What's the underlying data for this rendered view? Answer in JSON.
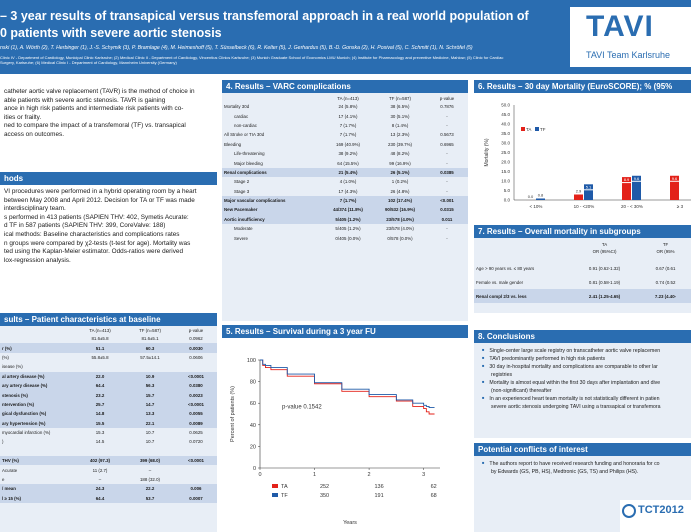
{
  "header": {
    "title_line1": "– 3 year results of transapical versus transfemoral approach in a real world population of",
    "title_line2": "0 patients with severe aortic stenosis",
    "authors": "nski (1), A. Wörth (2), T. Herbinger (1), J.-S. Schymik (3), P. Bramlage (4), M. Heimeshoff (5), T. Süsselbeck (6), R. Kelter (5), J. Gerhardus (5), B.-D. Gonska (2), H. Posival (5), C. Schmitt (1), N. Schröfel (5)",
    "affil_line1": "Clinic IV - Department of Cardiology, Municipal Clinic Karlsruhe; (2) Medical Clinic II - Department of Cardiology, Vincentius Clinics Karlsruhe; (3) Munich Graduate School of Economics LMU Munich; (4) Institute for Pharmacology and preventive Medicine, Mahlow; (5) Clinic for Cardiac",
    "affil_line2": "Surgery, Karlsruhe; (6) Medical Clinic I - Department of Cardiology, Mannheim University (Germany)",
    "logo_text": "TAVI",
    "logo_sub": "TAVI Team Karlsruhe"
  },
  "intro": {
    "lines": [
      "catheter aortic valve replacement (TAVR) is the method of choice in",
      "able patients with severe aortic stenosis. TAVR is gaining",
      "ance in high risk patients and intermediate risk patients with co-",
      "ities or frailty.",
      "ned to compare the impact of a transfemoral (TF) vs. transapical",
      "access on outcomes."
    ]
  },
  "methods": {
    "title": "hods",
    "lines": [
      "VI procedures were performed in a hybrid operating room by a heart",
      "between May 2008 and April 2012. Decision for TA or TF was made",
      "interdisciplinary team.",
      "s performed in 413 patients (SAPIEN THV: 402, Symetis Acurate:",
      "d TF in 587 patients (SAPIEN THV: 399, CoreValve: 188)",
      "ical methods: Baseline characteristics and complications rates",
      "n groups were compared by χ2-tests (t-test for age). Mortality was",
      "ted using the Kaplan-Meier estimator. Odds-ratios were derived",
      "lox-regression analysis."
    ]
  },
  "baseline": {
    "title": "sults – Patient characteristics at baseline",
    "headers": [
      "",
      "TA (n=413)",
      "TF (n=587)",
      "p-value"
    ],
    "rows": [
      {
        "label": "",
        "ta": "81.6±5.8",
        "tf": "81.6±5.1",
        "p": "0.0962",
        "hl": false
      },
      {
        "label": "r (%)",
        "ta": "51.1",
        "tf": "60.3",
        "p": "0.0030",
        "hl": true
      },
      {
        "label": "(%)",
        "ta": "55.8±5.8",
        "tf": "57.5±14.1",
        "p": "0.0606",
        "hl": false
      },
      {
        "label": "isease (%)",
        "ta": "",
        "tf": "",
        "p": "",
        "hl": false
      },
      {
        "label": "al artery disease (%)",
        "ta": "22.0",
        "tf": "10.9",
        "p": "<0.0001",
        "hl": true
      },
      {
        "label": "ary artery disease (%)",
        "ta": "64.4",
        "tf": "56.3",
        "p": "0.0380",
        "hl": true
      },
      {
        "label": "stenosis (%)",
        "ta": "23.2",
        "tf": "15.7",
        "p": "0.0023",
        "hl": true
      },
      {
        "label": "ntervention (%)",
        "ta": "25.7",
        "tf": "14.7",
        "p": "<0.0001",
        "hl": true
      },
      {
        "label": "gical dysfunction (%)",
        "ta": "14.8",
        "tf": "13.3",
        "p": "0.0055",
        "hl": true
      },
      {
        "label": "ary hypertension (%)",
        "ta": "15.5",
        "tf": "22.1",
        "p": "0.0089",
        "hl": true
      },
      {
        "label": "myocardial infarction (%)",
        "ta": "15.3",
        "tf": "10.7",
        "p": "0.0625",
        "hl": false
      },
      {
        "label": ")",
        "ta": "14.5",
        "tf": "10.7",
        "p": "0.0720",
        "hl": false
      },
      {
        "label": "",
        "ta": "",
        "tf": "",
        "p": "",
        "hl": false
      },
      {
        "label": "THV (%)",
        "ta": "402 (97.3)",
        "tf": "399 (68.0)",
        "p": "<0.0001",
        "hl": true
      },
      {
        "label": "Acurate",
        "ta": "11 (2.7)",
        "tf": "–",
        "p": "",
        "hl": false
      },
      {
        "label": "e",
        "ta": "–",
        "tf": "188 (32.0)",
        "p": "",
        "hl": false
      },
      {
        "label": "/ mean",
        "ta": "24.3",
        "tf": "22.2",
        "p": "0.006",
        "hl": true
      },
      {
        "label": "l ≥ 15 (%)",
        "ta": "64.4",
        "tf": "53.7",
        "p": "0.0007",
        "hl": true
      }
    ]
  },
  "varc": {
    "title": "4. Results – VARC complications",
    "headers": [
      "",
      "TA (n=413)",
      "TF (n=587)",
      "p-value"
    ],
    "rows": [
      {
        "label": "Mortality 30d",
        "ta": "24 (5.8%)",
        "tf": "38 (6.5%)",
        "p": "0.7876",
        "hl": false,
        "indent": false
      },
      {
        "label": "cardiac",
        "ta": "17 (4.1%)",
        "tf": "30 (5.1%)",
        "p": "-",
        "hl": false,
        "indent": true
      },
      {
        "label": "non-cardiac",
        "ta": "7 (1.7%)",
        "tf": "8 (1.4%)",
        "p": "-",
        "hl": false,
        "indent": true
      },
      {
        "label": "All Stroke or TIA 30d",
        "ta": "7 (1.7%)",
        "tf": "13 (2.3%)",
        "p": "0.5673",
        "hl": false,
        "indent": false
      },
      {
        "label": "Bleeding",
        "ta": "169 (40.9%)",
        "tf": "230 (39.7%)",
        "p": "0.6965",
        "hl": false,
        "indent": false
      },
      {
        "label": "Life-threatening",
        "ta": "38 (9.2%)",
        "tf": "48 (8.2%)",
        "p": "-",
        "hl": false,
        "indent": true
      },
      {
        "label": "Major bleeding",
        "ta": "64 (15.5%)",
        "tf": "99 (16.9%)",
        "p": "-",
        "hl": false,
        "indent": true
      },
      {
        "label": "Renal complications",
        "ta": "21 (5.4%)",
        "tf": "26 (5.1%)",
        "p": "0.0385",
        "hl": true,
        "indent": false
      },
      {
        "label": "Stage 2",
        "ta": "4 (1.0%)",
        "tf": "1 (0.2%)",
        "p": "-",
        "hl": false,
        "indent": true
      },
      {
        "label": "Stage 3",
        "ta": "17 (4.3%)",
        "tf": "26 (4.8%)",
        "p": "-",
        "hl": false,
        "indent": true
      },
      {
        "label": "Major vascular complications",
        "ta": "7 (1.7%)",
        "tf": "102 (17.4%)",
        "p": "<0.001",
        "hl": true,
        "indent": false
      },
      {
        "label": "New Pacemaker",
        "ta": "44/374 (11.8%)",
        "tf": "90/532 (16.9%)",
        "p": "0.0315",
        "hl": true,
        "indent": false
      },
      {
        "label": "Aortic insufficiency",
        "ta": "5/405 (1.2%)",
        "tf": "23/578 (4.0%)",
        "p": "0.011",
        "hl": true,
        "indent": false
      },
      {
        "label": "Moderate",
        "ta": "5/405 (1.2%)",
        "tf": "23/578 (4.0%)",
        "p": "-",
        "hl": false,
        "indent": true
      },
      {
        "label": "Severe",
        "ta": "0/405 (0.0%)",
        "tf": "0/578 (0.0%)",
        "p": "-",
        "hl": false,
        "indent": true
      }
    ]
  },
  "survival": {
    "title": "5. Results – Survival during a 3 year FU"
  },
  "mortality": {
    "title": "6. Results – 30 day Mortality (EuroSCORE); % (95%"
  },
  "subgroups": {
    "title": "7. Results – Overall mortality in subgroups",
    "col_ta": "TA",
    "col_tf": "TF",
    "col_or": "OR (95%CI)",
    "col_or2": "OR (95%",
    "rows": [
      {
        "label": "Age > 90 years vs. ≤ 80 years",
        "ta": "0.91 (0.62-1.32)",
        "tf": "0.67 (0.61",
        "hl": false
      },
      {
        "label": "Female vs. male gender",
        "ta": "0.81 (0.58-1.19)",
        "tf": "0.74 (0.52",
        "hl": false
      },
      {
        "label": "Renal compl 2/3 vs. less",
        "ta": "2.41 (1.25-4.65)",
        "tf": "7.23 (4.40-",
        "hl": true
      }
    ]
  },
  "conclusions": {
    "title": "8. Conclusions",
    "items": [
      "Single-center large scale registry on transcatheter aortic valve replacemen",
      "TAVI predominantly performed in high risk patients",
      "30 day in-hospital mortality and complications are comparable to other lar",
      "registries",
      "Mortality is almost equal within the first 30 days after implantation and dive",
      "(non-significant) thereafter",
      "In an experienced heart team mortality is not statistically different in patien",
      "severe aortic stenosis undergoing TAVI using a transapical or transfemora"
    ],
    "bullets": [
      true,
      true,
      true,
      false,
      true,
      false,
      true,
      false
    ]
  },
  "conflicts": {
    "title": "Potential conflicts of interest",
    "items": [
      "The authors report to have received research funding and honoraria for co",
      "by Edwards (GS, PB, HS), Medtronic (GS, TS) and Philips (HS)."
    ],
    "bullets": [
      true,
      false
    ]
  },
  "tct_logo": "TCT2012",
  "colors": {
    "header_blue": "#2a6db1",
    "panel_bg": "#e8eef6",
    "highlight_row": "#c9d6ea",
    "ta_red": "#e32119",
    "tf_blue": "#1f5aa8"
  },
  "chart_data": [
    {
      "type": "line",
      "ylabel": "Percent of patients (%)",
      "xlabel": "Years",
      "yticks": [
        "0",
        "20",
        "40",
        "60",
        "80",
        "100"
      ],
      "xticks": [
        "0",
        "1",
        "2",
        "3"
      ],
      "ylim": [
        0,
        100
      ],
      "xlim": [
        0,
        3.3
      ],
      "grid": false,
      "annotation": "p-value 0.1542",
      "series": [
        {
          "name": "TA",
          "color": "#e32119",
          "x": [
            0,
            0.05,
            0.1,
            0.2,
            0.5,
            1.0,
            1.5,
            2.0,
            2.5,
            2.8,
            3.0,
            3.05,
            3.1,
            3.2
          ],
          "y": [
            100,
            95,
            93,
            91,
            85,
            78,
            71,
            66,
            62,
            57,
            55,
            52,
            50,
            50
          ]
        },
        {
          "name": "TF",
          "color": "#1f5aa8",
          "x": [
            0,
            0.05,
            0.1,
            0.2,
            0.5,
            1.0,
            1.5,
            2.0,
            2.5,
            2.8,
            3.0,
            3.05,
            3.1,
            3.2
          ],
          "y": [
            100,
            96,
            95,
            93,
            87,
            79,
            73,
            68,
            63,
            60,
            58,
            57,
            56,
            56
          ]
        }
      ],
      "at_risk": {
        "TA": [
          "413",
          "252",
          "136",
          "62"
        ],
        "TF": [
          "587",
          "350",
          "191",
          "68"
        ]
      }
    },
    {
      "type": "bar",
      "ylabel": "Mortality (%)",
      "ylim": [
        0,
        50
      ],
      "yticks": [
        "0.0",
        "5.0",
        "10.0",
        "15.0",
        "20.0",
        "25.0",
        "30.0",
        "35.0",
        "40.0",
        "45.0",
        "50.0"
      ],
      "categories": [
        "< 10%",
        "10 - <20%",
        "20 - < 30%",
        "≥ 3"
      ],
      "series": [
        {
          "name": "TA",
          "color": "#e32119",
          "values": [
            0.0,
            2.9,
            8.9,
            9.6
          ],
          "labels": [
            "0.0",
            "2.9",
            "8.9",
            "9.6"
          ]
        },
        {
          "name": "TF",
          "color": "#1f5aa8",
          "values": [
            0.8,
            5.1,
            9.6,
            null
          ],
          "labels": [
            "0.8",
            "5.1",
            "9.6",
            ""
          ]
        }
      ]
    }
  ]
}
